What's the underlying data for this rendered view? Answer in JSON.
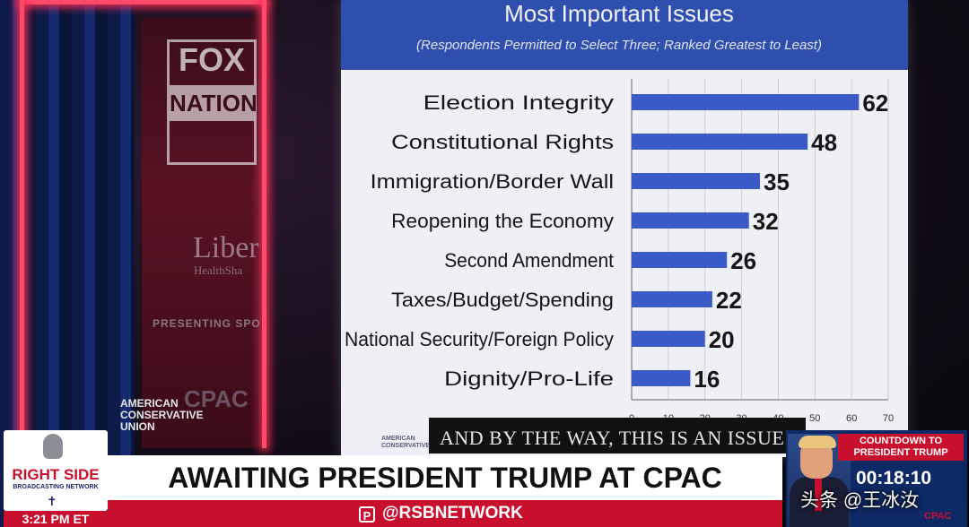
{
  "screen": {
    "title": "Most Important Issues",
    "subtitle": "(Respondents Permitted to Select Three; Ranked Greatest to Least)",
    "bar_color": "#3a5bc7",
    "caption": "AND BY THE WAY, THIS IS AN ISSUE"
  },
  "chart_data": {
    "type": "bar",
    "orientation": "horizontal",
    "categories": [
      "Election Integrity",
      "Constitutional Rights",
      "Immigration/Border Wall",
      "Reopening the Economy",
      "Second Amendment",
      "Taxes/Budget/Spending",
      "National Security/Foreign Policy",
      "Dignity/Pro-Life"
    ],
    "values": [
      62,
      48,
      35,
      32,
      26,
      22,
      20,
      16
    ],
    "x_ticks": [
      "0",
      "10",
      "20",
      "30",
      "40",
      "50",
      "60",
      "70"
    ],
    "xlim": [
      0,
      70
    ],
    "grid": true,
    "legend": "none"
  },
  "backdrop": {
    "fox_line1": "FOX",
    "fox_line2": "NATION",
    "liberty": "Liber",
    "liberty_sub": "HealthSha",
    "presenting": "PRESENTING SPO",
    "acu_line1": "AMERICAN",
    "acu_line2": "CONSERVATIVE",
    "acu_line3": "UNION",
    "cpac": "CPAC",
    "screen_logo_line1": "AMERICAN",
    "screen_logo_line2": "CONSERVATIVE"
  },
  "lower_third": {
    "network_name": "RIGHT SIDE",
    "network_sub": "BROADCASTING NETWORK",
    "time": "3:21 PM ET",
    "headline": "AWAITING PRESIDENT TRUMP AT CPAC",
    "handle": "@RSBNETWORK",
    "handle_icon": "P",
    "countdown_label": "COUNTDOWN TO PRESIDENT TRUMP",
    "countdown_time": "00:18:10",
    "countdown_logo": "CPAC"
  },
  "watermark": "头条 @王冰汝"
}
